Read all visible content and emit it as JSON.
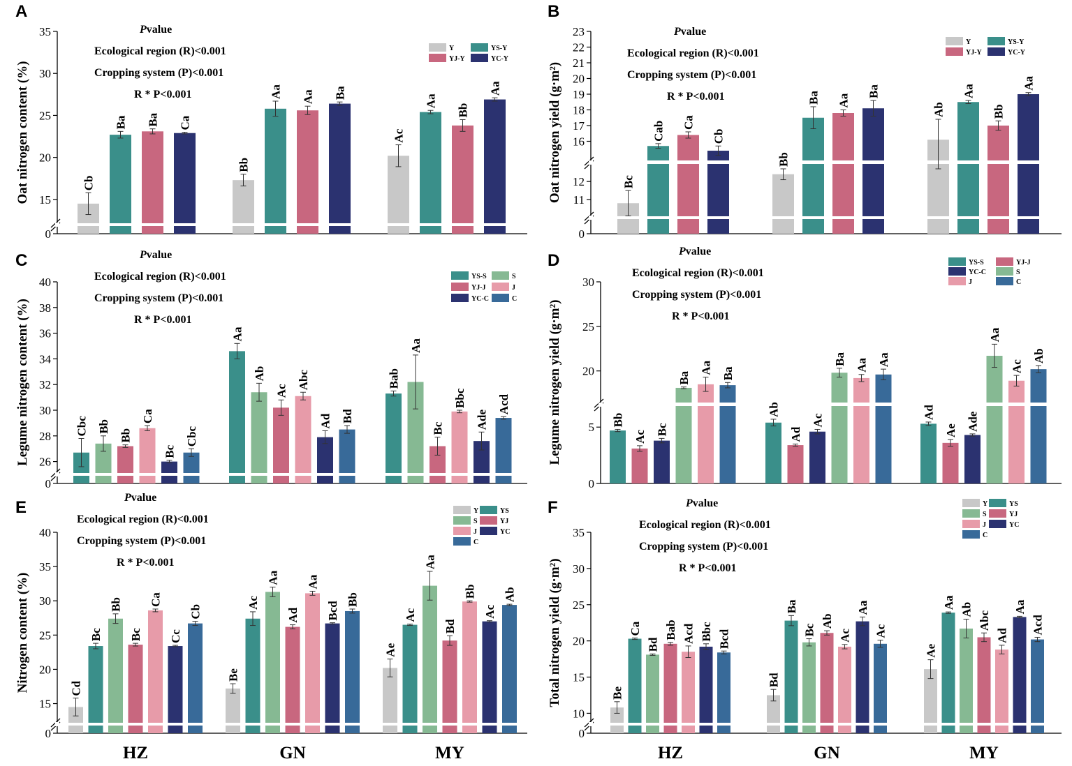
{
  "figure": {
    "colors": {
      "Y": "#c8c8c8",
      "YS": "#3a8f8a",
      "S": "#86b993",
      "YJ": "#c8677f",
      "J": "#e79ba9",
      "YC": "#2b3270",
      "C": "#386a99"
    },
    "stats_heading_bold": "P",
    "stats_heading_rest": "value",
    "stats_lines": [
      "Ecological region (R)<0.001",
      "Cropping system (P)<0.001",
      "R * P<0.001"
    ],
    "x_labels": [
      "HZ",
      "GN",
      "MY"
    ]
  },
  "chart_data": [
    {
      "panel": "A",
      "type": "bar",
      "ylabel": "Oat nitrogen content (%)",
      "categories": [
        "HZ",
        "GN",
        "MY"
      ],
      "ylim": [
        0,
        35
      ],
      "break_below": 12,
      "ticks": [
        0,
        15,
        20,
        25,
        30,
        35
      ],
      "legend": [
        {
          "label": "Y",
          "color": "Y"
        },
        {
          "label": "YS-Y",
          "color": "YS"
        },
        {
          "label": "YJ-Y",
          "color": "YJ"
        },
        {
          "label": "YC-Y",
          "color": "YC"
        }
      ],
      "series": [
        {
          "name": "Y",
          "color": "Y",
          "values": [
            14.5,
            17.3,
            20.2
          ],
          "errors": [
            1.3,
            0.7,
            1.3
          ],
          "letters": [
            "Cb",
            "Bb",
            "Ac"
          ]
        },
        {
          "name": "YS-Y",
          "color": "YS",
          "values": [
            22.7,
            25.8,
            25.4
          ],
          "errors": [
            0.4,
            0.9,
            0.2
          ],
          "letters": [
            "Ba",
            "Aa",
            "Aa"
          ]
        },
        {
          "name": "YJ-Y",
          "color": "YJ",
          "values": [
            23.1,
            25.6,
            23.8
          ],
          "errors": [
            0.3,
            0.5,
            0.7
          ],
          "letters": [
            "Ba",
            "Aa",
            "Bb"
          ]
        },
        {
          "name": "YC-Y",
          "color": "YC",
          "values": [
            22.9,
            26.4,
            26.9
          ],
          "errors": [
            0.1,
            0.2,
            0.2
          ],
          "letters": [
            "Ca",
            "Ba",
            "Aa"
          ]
        }
      ]
    },
    {
      "panel": "B",
      "type": "bar",
      "ylabel": "Oat nitrogen yield (g·m²)",
      "categories": [
        "HZ",
        "GN",
        "MY"
      ],
      "ylim": [
        0,
        23
      ],
      "break_below": 10,
      "break2": [
        12.7,
        15
      ],
      "ticks": [
        0,
        11,
        12,
        16,
        17,
        18,
        19,
        20,
        21,
        22,
        23
      ],
      "legend": [
        {
          "label": "Y",
          "color": "Y"
        },
        {
          "label": "YS-Y",
          "color": "YS"
        },
        {
          "label": "YJ-Y",
          "color": "YJ"
        },
        {
          "label": "YC-Y",
          "color": "YC"
        }
      ],
      "series": [
        {
          "name": "Y",
          "color": "Y",
          "values": [
            10.8,
            12.4,
            16.1
          ],
          "errors": [
            0.7,
            0.3,
            1.3
          ],
          "letters": [
            "Bc",
            "Bb",
            "Ab"
          ]
        },
        {
          "name": "YS-Y",
          "color": "YS",
          "values": [
            15.7,
            17.5,
            18.5
          ],
          "errors": [
            0.15,
            0.7,
            0.1
          ],
          "letters": [
            "Cab",
            "Ba",
            "Aa"
          ]
        },
        {
          "name": "YJ-Y",
          "color": "YJ",
          "values": [
            16.4,
            17.8,
            17.0
          ],
          "errors": [
            0.2,
            0.2,
            0.3
          ],
          "letters": [
            "Ca",
            "Aa",
            "Bb"
          ]
        },
        {
          "name": "YC-Y",
          "color": "YC",
          "values": [
            15.4,
            18.1,
            19.0
          ],
          "errors": [
            0.3,
            0.5,
            0.1
          ],
          "letters": [
            "Cb",
            "Ba",
            "Aa"
          ]
        }
      ]
    },
    {
      "panel": "C",
      "type": "bar",
      "ylabel": "Legume nitrogen content (%)",
      "categories": [
        "HZ",
        "GN",
        "MY"
      ],
      "ylim": [
        0,
        40
      ],
      "break_below": 25,
      "ticks": [
        0,
        26,
        28,
        30,
        32,
        34,
        36,
        38,
        40
      ],
      "legend": [
        {
          "label": "YS-S",
          "color": "YS"
        },
        {
          "label": "S",
          "color": "S"
        },
        {
          "label": "YJ-J",
          "color": "YJ"
        },
        {
          "label": "J",
          "color": "J"
        },
        {
          "label": "YC-C",
          "color": "YC"
        },
        {
          "label": "C",
          "color": "C"
        }
      ],
      "series": [
        {
          "name": "YS-S",
          "color": "YS",
          "values": [
            26.7,
            34.6,
            31.3
          ],
          "errors": [
            1.1,
            0.6,
            0.2
          ],
          "letters": [
            "Cbc",
            "Aa",
            "Bab"
          ]
        },
        {
          "name": "S",
          "color": "S",
          "values": [
            27.4,
            31.4,
            32.2
          ],
          "errors": [
            0.6,
            0.7,
            2.1
          ],
          "letters": [
            "Bb",
            "Ab",
            "Aa"
          ]
        },
        {
          "name": "YJ-J",
          "color": "YJ",
          "values": [
            27.2,
            30.2,
            27.2
          ],
          "errors": [
            0.1,
            0.6,
            0.7
          ],
          "letters": [
            "Bb",
            "Ac",
            "Bc"
          ]
        },
        {
          "name": "J",
          "color": "J",
          "values": [
            28.6,
            31.1,
            29.9
          ],
          "errors": [
            0.2,
            0.3,
            0.1
          ],
          "letters": [
            "Ca",
            "Abc",
            "Bbc"
          ]
        },
        {
          "name": "YC-C",
          "color": "YC",
          "values": [
            26.0,
            27.9,
            27.6
          ],
          "errors": [
            0.1,
            0.5,
            0.7
          ],
          "letters": [
            "Bc",
            "Ad",
            "Ade"
          ]
        },
        {
          "name": "C",
          "color": "C",
          "values": [
            26.7,
            28.5,
            29.4
          ],
          "errors": [
            0.3,
            0.3,
            0.1
          ],
          "letters": [
            "Cbc",
            "Bd",
            "Acd"
          ]
        }
      ]
    },
    {
      "panel": "D",
      "type": "bar",
      "ylabel": "Legume nitrogen yield (g·m²)",
      "categories": [
        "HZ",
        "GN",
        "MY"
      ],
      "ylim": [
        0,
        30
      ],
      "break2": [
        6.5,
        17
      ],
      "ticks": [
        0,
        5,
        20,
        25,
        30
      ],
      "legend": [
        {
          "label": "YS-S",
          "color": "YS"
        },
        {
          "label": "YJ-J",
          "color": "YJ"
        },
        {
          "label": "YC-C",
          "color": "YC"
        },
        {
          "label": "S",
          "color": "S"
        },
        {
          "label": "J",
          "color": "J"
        },
        {
          "label": "C",
          "color": "C"
        }
      ],
      "series": [
        {
          "name": "YS-S",
          "color": "YS",
          "values": [
            4.7,
            5.4,
            5.3
          ],
          "errors": [
            0.1,
            0.3,
            0.15
          ],
          "letters": [
            "Bb",
            "Ab",
            "Ad"
          ]
        },
        {
          "name": "YJ-J",
          "color": "YJ",
          "values": [
            3.1,
            3.4,
            3.6
          ],
          "errors": [
            0.25,
            0.1,
            0.3
          ],
          "letters": [
            "Ac",
            "Ad",
            "Ae"
          ]
        },
        {
          "name": "YC-C",
          "color": "YC",
          "values": [
            3.8,
            4.6,
            4.3
          ],
          "errors": [
            0.2,
            0.2,
            0.1
          ],
          "letters": [
            "Bc",
            "Ac",
            "Ade"
          ]
        },
        {
          "name": "S",
          "color": "S",
          "values": [
            18.1,
            19.8,
            21.7
          ],
          "errors": [
            0.1,
            0.5,
            1.3
          ],
          "letters": [
            "Ba",
            "Ba",
            "Aa"
          ]
        },
        {
          "name": "J",
          "color": "J",
          "values": [
            18.5,
            19.2,
            18.9
          ],
          "errors": [
            0.8,
            0.4,
            0.6
          ],
          "letters": [
            "Aa",
            "Aa",
            "Ac"
          ]
        },
        {
          "name": "C",
          "color": "C",
          "values": [
            18.4,
            19.6,
            20.2
          ],
          "errors": [
            0.3,
            0.6,
            0.4
          ],
          "letters": [
            "Ba",
            "Aa",
            "Ab"
          ]
        }
      ]
    },
    {
      "panel": "E",
      "type": "bar",
      "ylabel": "Nitrogen content (%)",
      "categories": [
        "HZ",
        "GN",
        "MY"
      ],
      "ylim": [
        0,
        40
      ],
      "break_below": 12,
      "ticks": [
        0,
        15,
        20,
        25,
        30,
        35,
        40
      ],
      "legend": [
        {
          "label": "Y",
          "color": "Y"
        },
        {
          "label": "YS",
          "color": "YS"
        },
        {
          "label": "S",
          "color": "S"
        },
        {
          "label": "YJ",
          "color": "YJ"
        },
        {
          "label": "J",
          "color": "J"
        },
        {
          "label": "YC",
          "color": "YC"
        },
        {
          "label": "C",
          "color": "C"
        }
      ],
      "series": [
        {
          "name": "Y",
          "color": "Y",
          "values": [
            14.5,
            17.2,
            20.2
          ],
          "errors": [
            1.3,
            0.7,
            1.3
          ],
          "letters": [
            "Cd",
            "Be",
            "Ae"
          ]
        },
        {
          "name": "YS",
          "color": "YS",
          "values": [
            23.4,
            27.4,
            26.5
          ],
          "errors": [
            0.4,
            1.0,
            0.1
          ],
          "letters": [
            "Bc",
            "Ac",
            "Ac"
          ]
        },
        {
          "name": "S",
          "color": "S",
          "values": [
            27.4,
            31.3,
            32.2
          ],
          "errors": [
            0.7,
            0.7,
            2.1
          ],
          "letters": [
            "Bb",
            "Aa",
            "Aa"
          ]
        },
        {
          "name": "YJ",
          "color": "YJ",
          "values": [
            23.6,
            26.2,
            24.2
          ],
          "errors": [
            0.2,
            0.3,
            0.7
          ],
          "letters": [
            "Bc",
            "Ad",
            "Bd"
          ]
        },
        {
          "name": "J",
          "color": "J",
          "values": [
            28.6,
            31.1,
            29.9
          ],
          "errors": [
            0.2,
            0.3,
            0.1
          ],
          "letters": [
            "Ca",
            "Aa",
            "Bb"
          ]
        },
        {
          "name": "YC",
          "color": "YC",
          "values": [
            23.4,
            26.7,
            27.0
          ],
          "errors": [
            0.1,
            0.1,
            0.1
          ],
          "letters": [
            "Cc",
            "Bcd",
            "Ac"
          ]
        },
        {
          "name": "C",
          "color": "C",
          "values": [
            26.7,
            28.5,
            29.4
          ],
          "errors": [
            0.3,
            0.3,
            0.1
          ],
          "letters": [
            "Cb",
            "Bb",
            "Ab"
          ]
        }
      ]
    },
    {
      "panel": "F",
      "type": "bar",
      "ylabel": "Total nitrogen yield (g·m²)",
      "categories": [
        "HZ",
        "GN",
        "MY"
      ],
      "ylim": [
        0,
        35
      ],
      "break_below": 8.5,
      "ticks": [
        0,
        10,
        15,
        20,
        25,
        30,
        35
      ],
      "legend": [
        {
          "label": "Y",
          "color": "Y"
        },
        {
          "label": "YS",
          "color": "YS"
        },
        {
          "label": "S",
          "color": "S"
        },
        {
          "label": "YJ",
          "color": "YJ"
        },
        {
          "label": "J",
          "color": "J"
        },
        {
          "label": "YC",
          "color": "YC"
        },
        {
          "label": "C",
          "color": "C"
        }
      ],
      "series": [
        {
          "name": "Y",
          "color": "Y",
          "values": [
            10.8,
            12.5,
            16.1
          ],
          "errors": [
            0.8,
            0.8,
            1.3
          ],
          "letters": [
            "Be",
            "Bd",
            "Ae"
          ]
        },
        {
          "name": "YS",
          "color": "YS",
          "values": [
            20.3,
            22.8,
            23.9
          ],
          "errors": [
            0.1,
            0.7,
            0.1
          ],
          "letters": [
            "Ca",
            "Ba",
            "Aa"
          ]
        },
        {
          "name": "S",
          "color": "S",
          "values": [
            18.1,
            19.8,
            21.7
          ],
          "errors": [
            0.1,
            0.5,
            1.3
          ],
          "letters": [
            "Bd",
            "Bc",
            "Ab"
          ]
        },
        {
          "name": "YJ",
          "color": "YJ",
          "values": [
            19.6,
            21.1,
            20.5
          ],
          "errors": [
            0.2,
            0.3,
            0.6
          ],
          "letters": [
            "Bab",
            "Ab",
            "Abc"
          ]
        },
        {
          "name": "J",
          "color": "J",
          "values": [
            18.5,
            19.2,
            18.8
          ],
          "errors": [
            0.8,
            0.3,
            0.6
          ],
          "letters": [
            "Acd",
            "Ac",
            "Ad"
          ]
        },
        {
          "name": "YC",
          "color": "YC",
          "values": [
            19.2,
            22.7,
            23.3
          ],
          "errors": [
            0.4,
            0.6,
            0.1
          ],
          "letters": [
            "Bbc",
            "Aa",
            "Aa"
          ]
        },
        {
          "name": "C",
          "color": "C",
          "values": [
            18.4,
            19.6,
            20.2
          ],
          "errors": [
            0.2,
            0.5,
            0.3
          ],
          "letters": [
            "Bcd",
            "Ac",
            "Acd"
          ]
        }
      ]
    }
  ]
}
